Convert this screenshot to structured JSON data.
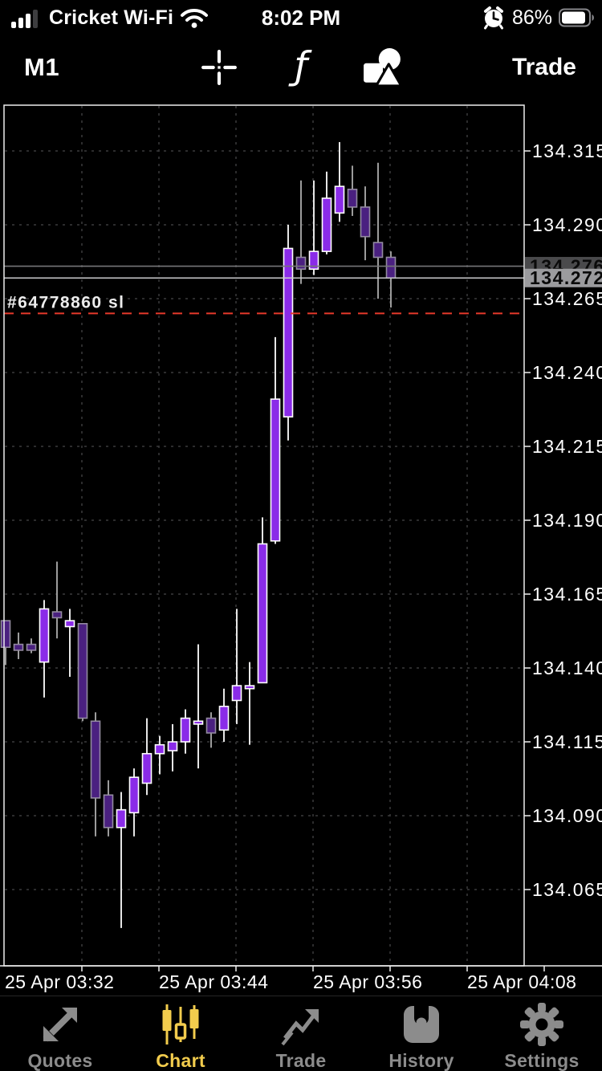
{
  "status_bar": {
    "carrier": "Cricket Wi-Fi",
    "time": "8:02 PM",
    "battery_percent": "86%",
    "icons": [
      "cellular-signal-icon",
      "wifi-icon",
      "alarm-icon",
      "battery-icon"
    ]
  },
  "toolbar": {
    "timeframe": "M1",
    "trade_label": "Trade",
    "icons": [
      "crosshair-icon",
      "function-indicator-icon",
      "objects-icon"
    ]
  },
  "chart_data": {
    "type": "candlestick",
    "timeframe": "M1",
    "price_ticks": [
      134.315,
      134.29,
      134.265,
      134.24,
      134.215,
      134.19,
      134.165,
      134.14,
      134.115,
      134.09,
      134.065
    ],
    "time_labels": [
      "25 Apr 03:32",
      "25 Apr 03:44",
      "25 Apr 03:56",
      "25 Apr 04:08"
    ],
    "ask": {
      "price": 134.276,
      "label": "134.276"
    },
    "bid": {
      "price": 134.272,
      "label": "134.272"
    },
    "stop_loss": {
      "label": "#64778860 sl",
      "price": 134.26
    },
    "grid": true,
    "legend_position": "none",
    "candles": [
      {
        "t": "03:26",
        "o": 134.156,
        "h": 134.156,
        "l": 134.141,
        "c": 134.147
      },
      {
        "t": "03:27",
        "o": 134.148,
        "h": 134.152,
        "l": 134.143,
        "c": 134.146
      },
      {
        "t": "03:28",
        "o": 134.148,
        "h": 134.15,
        "l": 134.145,
        "c": 134.146
      },
      {
        "t": "03:29",
        "o": 134.142,
        "h": 134.163,
        "l": 134.13,
        "c": 134.16
      },
      {
        "t": "03:30",
        "o": 134.159,
        "h": 134.176,
        "l": 134.15,
        "c": 134.157
      },
      {
        "t": "03:31",
        "o": 134.154,
        "h": 134.16,
        "l": 134.137,
        "c": 134.156
      },
      {
        "t": "03:32",
        "o": 134.155,
        "h": 134.155,
        "l": 134.122,
        "c": 134.123
      },
      {
        "t": "03:33",
        "o": 134.122,
        "h": 134.125,
        "l": 134.083,
        "c": 134.096
      },
      {
        "t": "03:34",
        "o": 134.097,
        "h": 134.102,
        "l": 134.083,
        "c": 134.086
      },
      {
        "t": "03:35",
        "o": 134.086,
        "h": 134.098,
        "l": 134.052,
        "c": 134.092
      },
      {
        "t": "03:36",
        "o": 134.091,
        "h": 134.106,
        "l": 134.083,
        "c": 134.103
      },
      {
        "t": "03:37",
        "o": 134.101,
        "h": 134.123,
        "l": 134.097,
        "c": 134.111
      },
      {
        "t": "03:38",
        "o": 134.111,
        "h": 134.117,
        "l": 134.104,
        "c": 134.114
      },
      {
        "t": "03:39",
        "o": 134.112,
        "h": 134.121,
        "l": 134.105,
        "c": 134.115
      },
      {
        "t": "03:40",
        "o": 134.115,
        "h": 134.126,
        "l": 134.111,
        "c": 134.123
      },
      {
        "t": "03:41",
        "o": 134.121,
        "h": 134.148,
        "l": 134.106,
        "c": 134.122
      },
      {
        "t": "03:42",
        "o": 134.123,
        "h": 134.125,
        "l": 134.113,
        "c": 134.118
      },
      {
        "t": "03:43",
        "o": 134.119,
        "h": 134.133,
        "l": 134.115,
        "c": 134.127
      },
      {
        "t": "03:44",
        "o": 134.129,
        "h": 134.16,
        "l": 134.121,
        "c": 134.134
      },
      {
        "t": "03:45",
        "o": 134.133,
        "h": 134.142,
        "l": 134.114,
        "c": 134.134
      },
      {
        "t": "03:46",
        "o": 134.135,
        "h": 134.191,
        "l": 134.135,
        "c": 134.182
      },
      {
        "t": "03:47",
        "o": 134.183,
        "h": 134.252,
        "l": 134.182,
        "c": 134.231
      },
      {
        "t": "03:48",
        "o": 134.225,
        "h": 134.29,
        "l": 134.217,
        "c": 134.282
      },
      {
        "t": "03:49",
        "o": 134.279,
        "h": 134.305,
        "l": 134.27,
        "c": 134.275
      },
      {
        "t": "03:50",
        "o": 134.275,
        "h": 134.305,
        "l": 134.273,
        "c": 134.281
      },
      {
        "t": "03:51",
        "o": 134.281,
        "h": 134.308,
        "l": 134.28,
        "c": 134.299
      },
      {
        "t": "03:52",
        "o": 134.294,
        "h": 134.318,
        "l": 134.291,
        "c": 134.303
      },
      {
        "t": "03:53",
        "o": 134.302,
        "h": 134.31,
        "l": 134.293,
        "c": 134.296
      },
      {
        "t": "03:54",
        "o": 134.296,
        "h": 134.303,
        "l": 134.278,
        "c": 134.286
      },
      {
        "t": "03:55",
        "o": 134.284,
        "h": 134.311,
        "l": 134.265,
        "c": 134.279
      },
      {
        "t": "03:56",
        "o": 134.279,
        "h": 134.281,
        "l": 134.262,
        "c": 134.272
      }
    ],
    "colors": {
      "background": "#000000",
      "bull_fill": "#8A2BE8",
      "bull_border": "#FFFFFF",
      "bear_fill": "#4A2080",
      "bear_border": "#938AA0",
      "wick_bull": "#E6E6E6",
      "wick_bear": "#9C9C9C",
      "grid": "#3A3A3C",
      "ask_line": "#767678",
      "bid_line": "#C9C9CB",
      "sl_line": "#E8392B",
      "ask_badge_bg": "#4A4A4C",
      "bid_badge_bg": "#9B9B9E",
      "badge_text": "#0A0A0A",
      "axis_text": "#FFFFFF",
      "border": "#EDEDED"
    }
  },
  "tab_bar": {
    "active_color": "#F2CC4D",
    "inactive_color": "#8C8C8C",
    "items": [
      {
        "label": "Quotes",
        "icon": "quotes-icon",
        "active": false
      },
      {
        "label": "Chart",
        "icon": "chart-icon",
        "active": true
      },
      {
        "label": "Trade",
        "icon": "trade-icon",
        "active": false
      },
      {
        "label": "History",
        "icon": "history-icon",
        "active": false
      },
      {
        "label": "Settings",
        "icon": "settings-icon",
        "active": false
      }
    ]
  }
}
